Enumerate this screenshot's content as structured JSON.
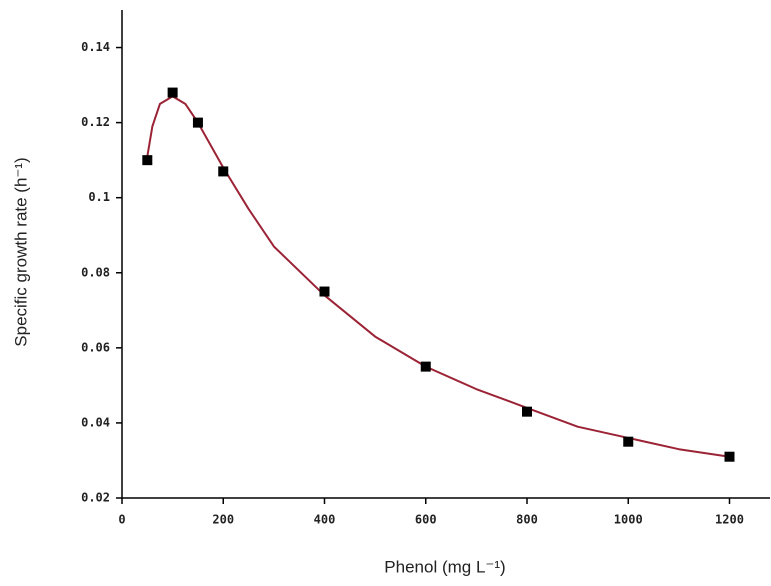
{
  "chart_data": {
    "type": "scatter",
    "xlabel": "Phenol (mg L⁻¹)",
    "ylabel": "Specific growth rate (h⁻¹)",
    "xlim": [
      0,
      1280
    ],
    "xticks": [
      0,
      200,
      400,
      600,
      800,
      1000,
      1200
    ],
    "ylim": [
      0.02,
      0.15
    ],
    "yticks": [
      0.02,
      0.04,
      0.06,
      0.08,
      0.1,
      0.12,
      0.14
    ],
    "series": [
      {
        "mode": "markers",
        "color": "#000000",
        "x": [
          50,
          100,
          150,
          200,
          400,
          600,
          800,
          1000,
          1200
        ],
        "values": [
          0.11,
          0.128,
          0.12,
          0.107,
          0.075,
          0.055,
          0.043,
          0.035,
          0.031
        ]
      },
      {
        "mode": "line",
        "color": "#9b2335",
        "x": [
          50,
          60,
          75,
          100,
          125,
          150,
          200,
          250,
          300,
          400,
          500,
          600,
          700,
          800,
          900,
          1000,
          1100,
          1200
        ],
        "values": [
          0.111,
          0.119,
          0.125,
          0.127,
          0.125,
          0.12,
          0.108,
          0.097,
          0.087,
          0.074,
          0.063,
          0.055,
          0.049,
          0.044,
          0.039,
          0.036,
          0.033,
          0.031
        ]
      }
    ]
  }
}
